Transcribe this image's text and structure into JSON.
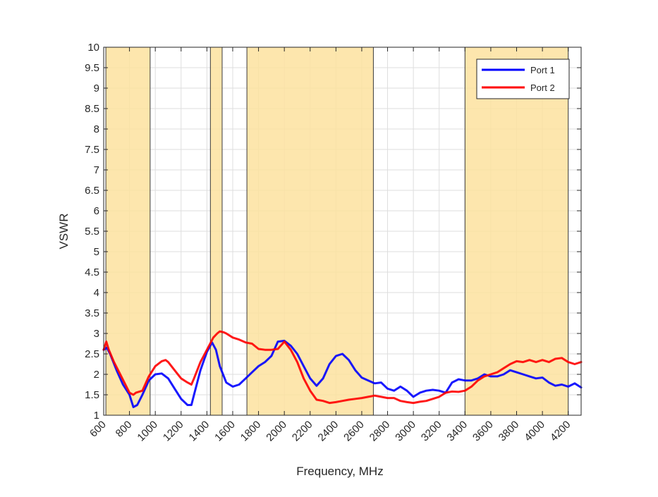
{
  "chart_data": {
    "type": "line",
    "title": "",
    "xlabel": "Frequency, MHz",
    "ylabel": "VSWR",
    "xlim": [
      600,
      4300
    ],
    "ylim": [
      1,
      10
    ],
    "xticks": [
      600,
      800,
      1000,
      1200,
      1400,
      1600,
      1800,
      2000,
      2200,
      2400,
      2600,
      2800,
      3000,
      3200,
      3400,
      3600,
      3800,
      4000,
      4200
    ],
    "xtick_labels": [
      "600",
      "800",
      "1000",
      "1200",
      "1400",
      "1600",
      "1800",
      "2000",
      "2200",
      "2400",
      "2600",
      "2800",
      "3000",
      "3200",
      "3400",
      "3600",
      "3800",
      "4000",
      "4200"
    ],
    "yticks": [
      1,
      1.5,
      2,
      2.5,
      3,
      3.5,
      4,
      4.5,
      5,
      5.5,
      6,
      6.5,
      7,
      7.5,
      8,
      8.5,
      9,
      9.5,
      10
    ],
    "ytick_labels": [
      "1",
      "1.5",
      "2",
      "2.5",
      "3",
      "3.5",
      "4",
      "4.5",
      "5",
      "5.5",
      "6",
      "6.5",
      "7",
      "7.5",
      "8",
      "8.5",
      "9",
      "9.5",
      "10"
    ],
    "grid": true,
    "legend_position": "top-right",
    "band_color": "#fde29f",
    "bands": [
      [
        617,
        960
      ],
      [
        1427,
        1518
      ],
      [
        1710,
        2690
      ],
      [
        3400,
        4200
      ]
    ],
    "series": [
      {
        "name": "Port 1",
        "color": "#0000ff",
        "x": [
          600,
          625,
          650,
          700,
          750,
          800,
          830,
          860,
          900,
          950,
          1000,
          1050,
          1100,
          1150,
          1200,
          1250,
          1280,
          1300,
          1350,
          1400,
          1440,
          1470,
          1500,
          1550,
          1600,
          1650,
          1700,
          1750,
          1800,
          1850,
          1900,
          1950,
          2000,
          2050,
          2100,
          2150,
          2200,
          2250,
          2300,
          2350,
          2400,
          2450,
          2500,
          2550,
          2600,
          2650,
          2700,
          2750,
          2800,
          2850,
          2900,
          2950,
          3000,
          3050,
          3100,
          3150,
          3200,
          3250,
          3300,
          3350,
          3400,
          3450,
          3500,
          3550,
          3600,
          3650,
          3700,
          3750,
          3800,
          3850,
          3900,
          3950,
          4000,
          4050,
          4100,
          4150,
          4200,
          4250,
          4300
        ],
        "y": [
          2.6,
          2.65,
          2.5,
          2.1,
          1.75,
          1.5,
          1.2,
          1.25,
          1.5,
          1.85,
          2.0,
          2.02,
          1.9,
          1.65,
          1.4,
          1.25,
          1.25,
          1.5,
          2.1,
          2.55,
          2.78,
          2.6,
          2.2,
          1.8,
          1.7,
          1.75,
          1.9,
          2.05,
          2.2,
          2.3,
          2.45,
          2.8,
          2.82,
          2.7,
          2.5,
          2.2,
          1.9,
          1.72,
          1.9,
          2.25,
          2.45,
          2.5,
          2.35,
          2.1,
          1.92,
          1.85,
          1.78,
          1.8,
          1.65,
          1.6,
          1.7,
          1.6,
          1.45,
          1.55,
          1.6,
          1.62,
          1.6,
          1.55,
          1.8,
          1.88,
          1.85,
          1.85,
          1.9,
          2.0,
          1.95,
          1.95,
          2.0,
          2.1,
          2.05,
          2.0,
          1.95,
          1.9,
          1.92,
          1.8,
          1.72,
          1.75,
          1.7,
          1.78,
          1.68
        ]
      },
      {
        "name": "Port 2",
        "color": "#ff0000",
        "x": [
          600,
          620,
          640,
          680,
          720,
          760,
          800,
          830,
          850,
          900,
          950,
          1000,
          1050,
          1080,
          1100,
          1150,
          1200,
          1250,
          1280,
          1300,
          1350,
          1400,
          1450,
          1480,
          1500,
          1530,
          1550,
          1600,
          1650,
          1700,
          1750,
          1800,
          1850,
          1900,
          1950,
          2000,
          2050,
          2100,
          2150,
          2200,
          2250,
          2300,
          2350,
          2400,
          2450,
          2500,
          2550,
          2600,
          2650,
          2700,
          2750,
          2800,
          2850,
          2900,
          2950,
          3000,
          3050,
          3100,
          3150,
          3200,
          3250,
          3300,
          3350,
          3400,
          3450,
          3500,
          3550,
          3600,
          3650,
          3700,
          3750,
          3800,
          3850,
          3900,
          3950,
          4000,
          4050,
          4100,
          4150,
          4200,
          4250,
          4300
        ],
        "y": [
          2.6,
          2.8,
          2.6,
          2.3,
          2.05,
          1.8,
          1.55,
          1.5,
          1.55,
          1.6,
          1.95,
          2.2,
          2.32,
          2.35,
          2.3,
          2.1,
          1.9,
          1.8,
          1.75,
          1.9,
          2.3,
          2.6,
          2.9,
          3.0,
          3.05,
          3.03,
          3.0,
          2.9,
          2.85,
          2.78,
          2.75,
          2.62,
          2.6,
          2.6,
          2.62,
          2.8,
          2.6,
          2.3,
          1.9,
          1.6,
          1.38,
          1.35,
          1.3,
          1.32,
          1.35,
          1.38,
          1.4,
          1.42,
          1.45,
          1.48,
          1.45,
          1.42,
          1.42,
          1.35,
          1.32,
          1.3,
          1.33,
          1.35,
          1.4,
          1.45,
          1.55,
          1.58,
          1.57,
          1.6,
          1.7,
          1.85,
          1.95,
          2.0,
          2.05,
          2.15,
          2.25,
          2.32,
          2.3,
          2.35,
          2.3,
          2.35,
          2.3,
          2.38,
          2.4,
          2.3,
          2.25,
          2.3
        ]
      }
    ]
  }
}
